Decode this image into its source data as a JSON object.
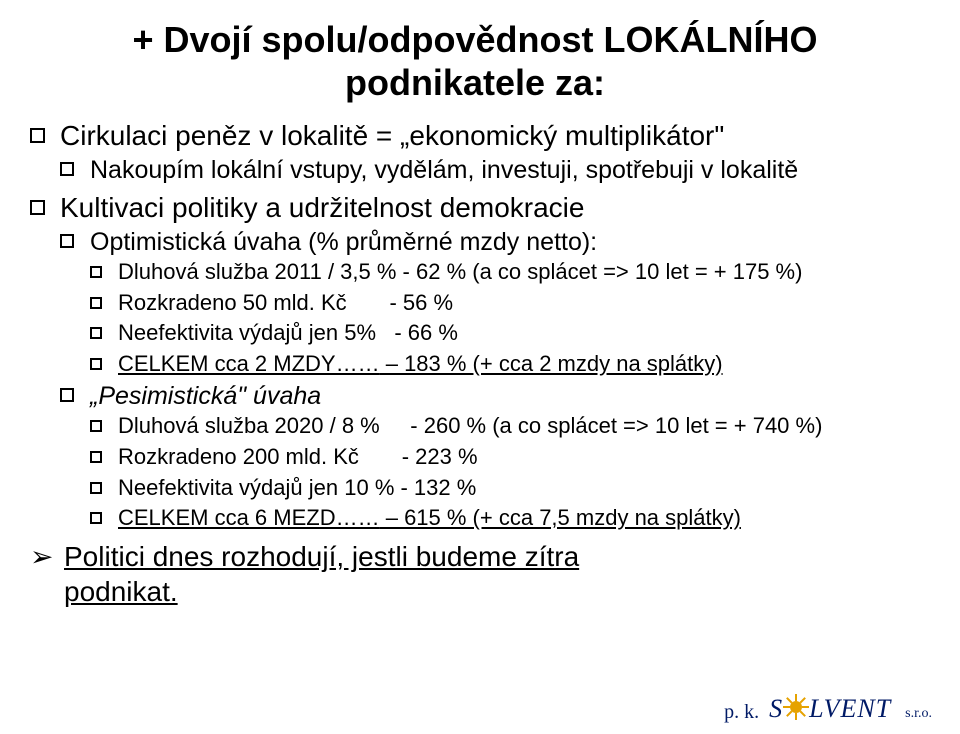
{
  "title_line1": "+ Dvojí spolu/odpovědnost LOKÁLNÍHO",
  "title_line2": "podnikatele za:",
  "b1": {
    "text": "Cirkulaci peněz v lokalitě = „ekonomický multiplikátor\"",
    "sub": [
      {
        "text": "Nakoupím lokální vstupy, vydělám, investuji, spotřebuji v lokalitě"
      }
    ]
  },
  "b2": {
    "text": "Kultivaci politiky a udržitelnost demokracie"
  },
  "opt": {
    "text": "Optimistická úvaha (% průměrné mzdy netto):",
    "items": [
      "Dluhová služba 2011 / 3,5 % - 62 % (a co splácet => 10 let = + 175 %)",
      "Rozkradeno 50 mld. Kč       - 56 %",
      "Neefektivita výdajů jen 5%   - 66 %"
    ],
    "total_lead": "CELKEM cca 2 MZDY……",
    "total_rest": " – 183 % (+ cca 2 mzdy na splátky)"
  },
  "pes": {
    "text": "„Pesimistická\" úvaha",
    "items": [
      "Dluhová služba 2020 / 8 %     - 260 % (a co splácet => 10 let = + 740 %)",
      "Rozkradeno 200 mld. Kč       - 223 %",
      "Neefektivita výdajů jen 10 % - 132 %"
    ],
    "total_lead": "CELKEM cca 6 MEZD……",
    "total_rest": " – 615 % (+ cca 7,5 mzdy na splátky)"
  },
  "arrow_line1": "Politici dnes rozhodují, jestli budeme zítra",
  "arrow_line2": "podnikat.",
  "logo": {
    "pk": "p. k.",
    "solvent_left": "S",
    "solvent_right": "LVENT",
    "sro": "s.r.o."
  }
}
